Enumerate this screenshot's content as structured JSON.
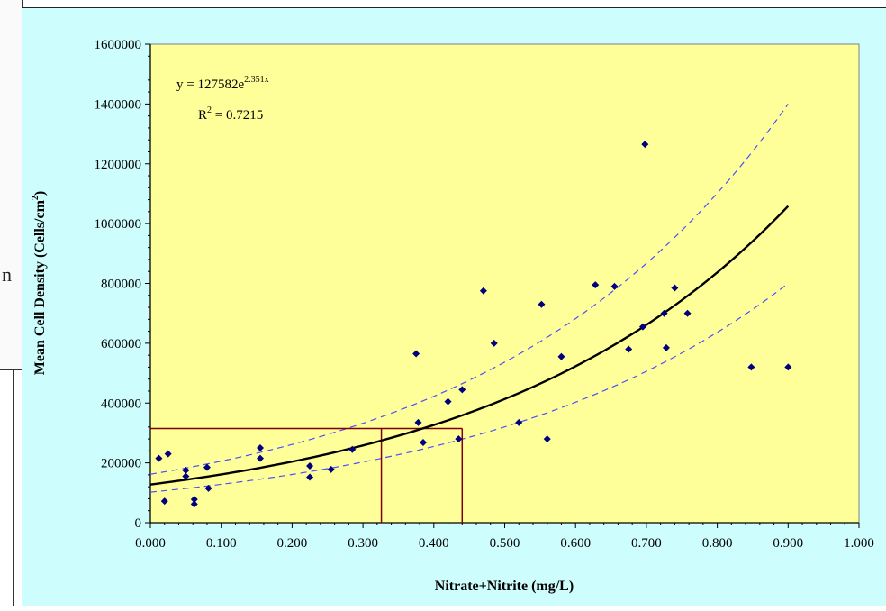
{
  "chart_data": {
    "type": "scatter",
    "xlabel": "Nitrate+Nitrite (mg/L)",
    "ylabel_main": "Mean Cell Density (Cells/cm",
    "ylabel_sup": "2",
    "ylabel_tail": ")",
    "xlim": [
      0,
      1.0
    ],
    "ylim": [
      0,
      1600000
    ],
    "x_ticks": [
      "0.000",
      "0.100",
      "0.200",
      "0.300",
      "0.400",
      "0.500",
      "0.600",
      "0.700",
      "0.800",
      "0.900",
      "1.000"
    ],
    "y_ticks": [
      "0",
      "200000",
      "400000",
      "600000",
      "800000",
      "1000000",
      "1200000",
      "1400000",
      "1600000"
    ],
    "equation_main": "y = 127582e",
    "equation_exp": "2.351x",
    "r2_main": "R",
    "r2_sup": "2",
    "r2_value": " = 0.7215",
    "fit": {
      "a": 127582,
      "b": 2.351,
      "x_range": [
        0,
        0.9
      ]
    },
    "lower_band_end": 800000,
    "upper_band_end": 1400000,
    "reference": {
      "y": 315000,
      "x_fit": 0.326,
      "x_upper": 0.44
    },
    "colors": {
      "plot_bg": "#ffff99",
      "panel_bg": "#ccffff",
      "points": "#00007f",
      "fit": "#000000",
      "band": "#4d4dff",
      "reference": "#7f0000"
    },
    "points": [
      [
        0.012,
        215000
      ],
      [
        0.025,
        230000
      ],
      [
        0.02,
        72000
      ],
      [
        0.05,
        175000
      ],
      [
        0.05,
        155000
      ],
      [
        0.062,
        78000
      ],
      [
        0.062,
        62000
      ],
      [
        0.08,
        185000
      ],
      [
        0.082,
        115000
      ],
      [
        0.155,
        250000
      ],
      [
        0.155,
        215000
      ],
      [
        0.225,
        190000
      ],
      [
        0.225,
        152000
      ],
      [
        0.255,
        178000
      ],
      [
        0.285,
        245000
      ],
      [
        0.375,
        565000
      ],
      [
        0.378,
        335000
      ],
      [
        0.385,
        268000
      ],
      [
        0.42,
        405000
      ],
      [
        0.435,
        280000
      ],
      [
        0.44,
        445000
      ],
      [
        0.47,
        775000
      ],
      [
        0.485,
        600000
      ],
      [
        0.52,
        335000
      ],
      [
        0.552,
        730000
      ],
      [
        0.56,
        280000
      ],
      [
        0.58,
        555000
      ],
      [
        0.628,
        795000
      ],
      [
        0.655,
        790000
      ],
      [
        0.675,
        580000
      ],
      [
        0.695,
        655000
      ],
      [
        0.698,
        1265000
      ],
      [
        0.725,
        700000
      ],
      [
        0.728,
        585000
      ],
      [
        0.74,
        785000
      ],
      [
        0.758,
        700000
      ],
      [
        0.848,
        520000
      ],
      [
        0.9,
        520000
      ]
    ]
  }
}
